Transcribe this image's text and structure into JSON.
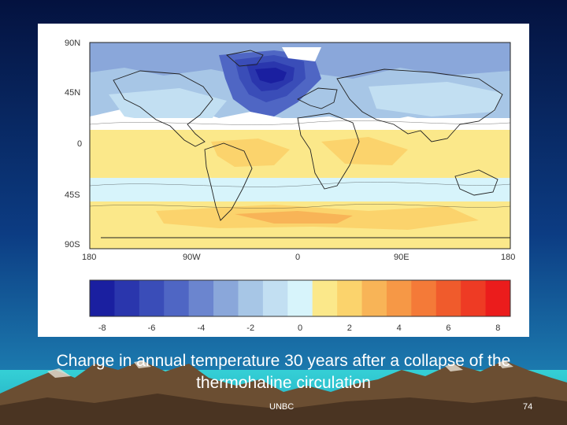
{
  "slide": {
    "caption_line1": "Change in annual temperature 30 years after a collapse of the",
    "caption_line2": "thermohaline circulation",
    "footer_left": "UNBC",
    "page_number": "74"
  },
  "map": {
    "lat_labels": [
      "90N",
      "45N",
      "0",
      "45S",
      "90S"
    ],
    "lon_labels": [
      "180",
      "90W",
      "0",
      "90E",
      "180"
    ]
  },
  "colorbar": {
    "tick_labels": [
      "-8",
      "-6",
      "-4",
      "-2",
      "0",
      "2",
      "4",
      "6",
      "8"
    ],
    "colors": [
      "#1a1fa0",
      "#2a36ad",
      "#3a4db8",
      "#4f66c4",
      "#6b85cf",
      "#8aa7da",
      "#a7c6e6",
      "#c2dff2",
      "#d7f4fb",
      "#fbe88a",
      "#fbd36c",
      "#f8b457",
      "#f69846",
      "#f47a38",
      "#f05b2c",
      "#ee3b24",
      "#eb1c1c"
    ]
  },
  "theme": {
    "sky_top": "#04123f",
    "sky_bottom": "#1d7fb3",
    "ground": "#32c8d0",
    "mountain": "#6b4e32"
  }
}
